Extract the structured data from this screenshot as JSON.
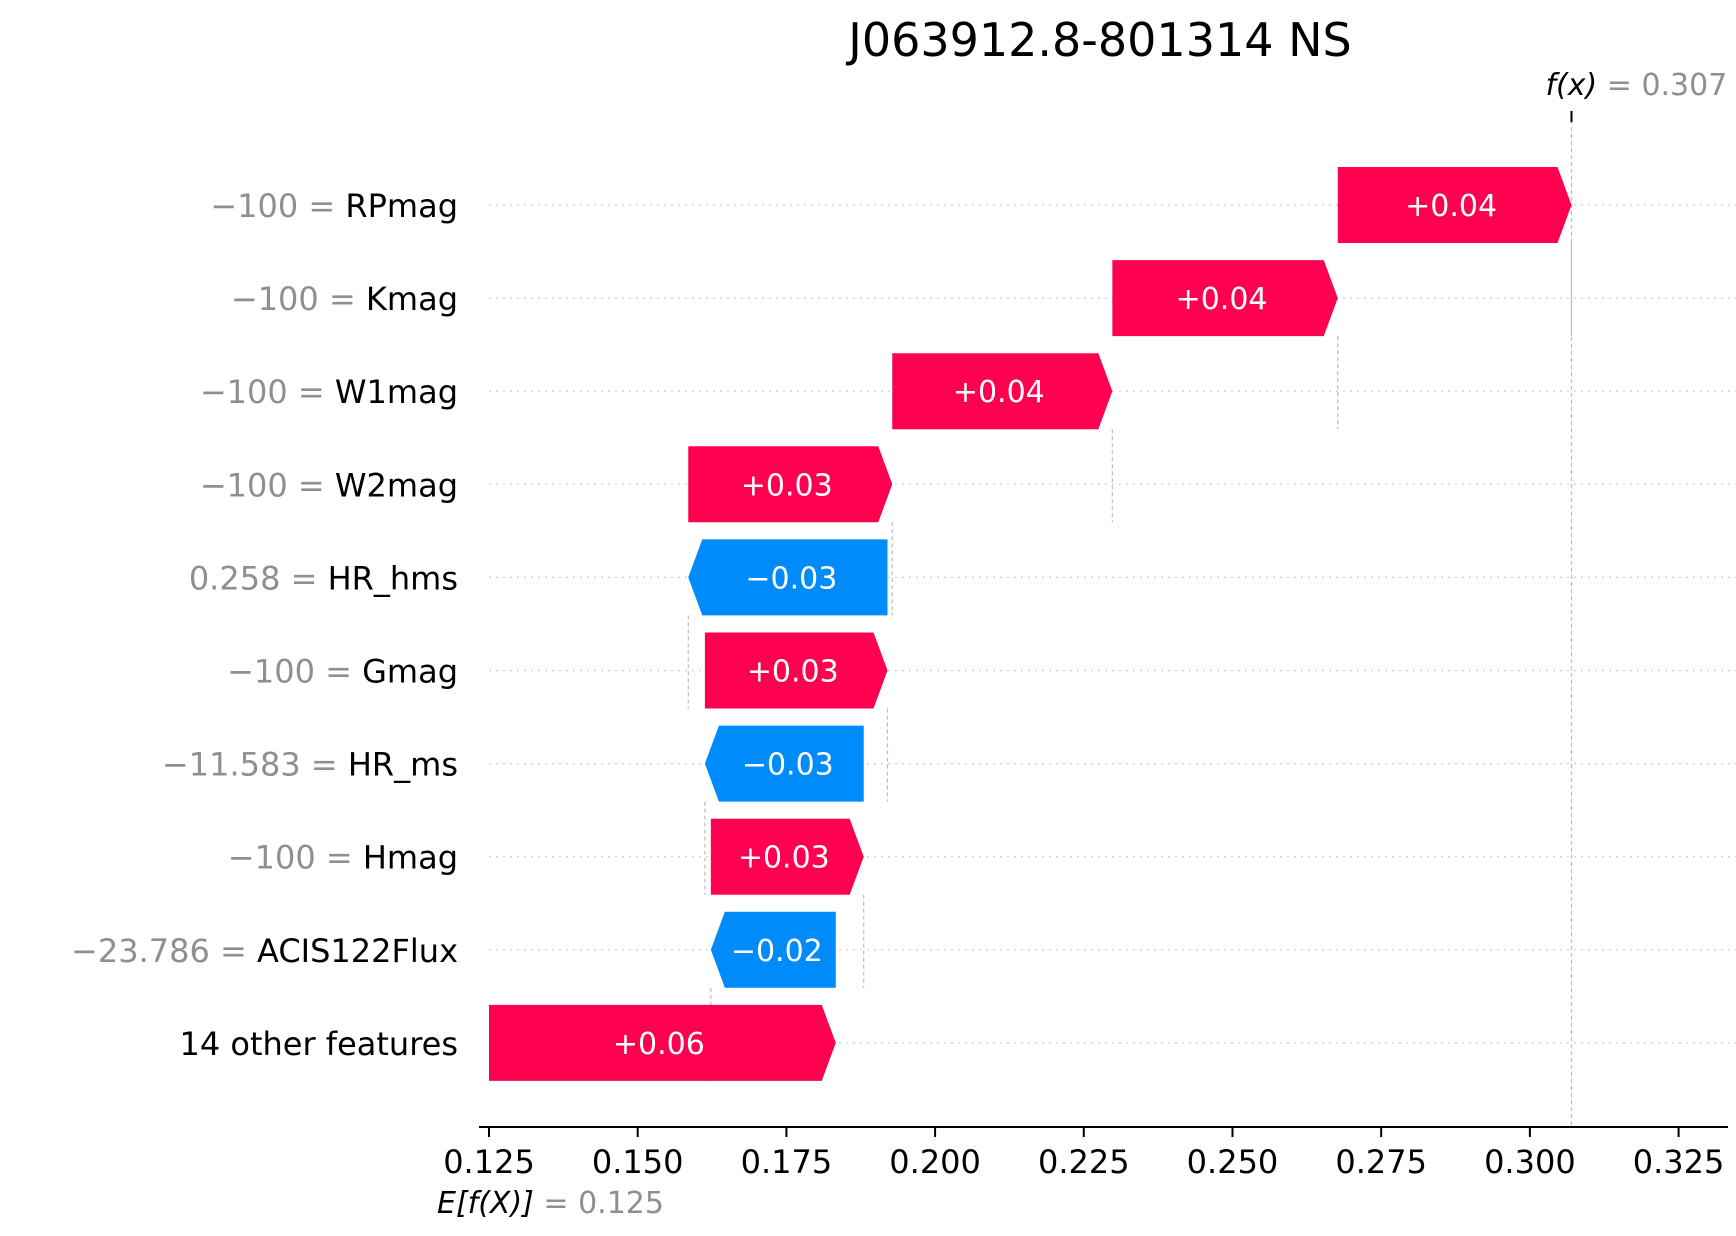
{
  "chart_data": {
    "type": "waterfall",
    "title": "J063912.8-801314 NS",
    "base_value": 0.125,
    "final_value": 0.307,
    "base_label": {
      "expr": "E[f(X)]",
      "value_text": "= 0.125"
    },
    "final_label": {
      "expr": "f(x)",
      "value_text": "= 0.307"
    },
    "xlim": [
      0.125,
      0.336
    ],
    "x_ticks": [
      0.125,
      0.15,
      0.175,
      0.2,
      0.225,
      0.25,
      0.275,
      0.3,
      0.325
    ],
    "x_tick_labels": [
      "0.125",
      "0.150",
      "0.175",
      "0.200",
      "0.225",
      "0.250",
      "0.275",
      "0.300",
      "0.325"
    ],
    "features": [
      {
        "value": "−100",
        "name": "RPmag",
        "start": 0.2677,
        "end": 0.307,
        "label": "+0.04"
      },
      {
        "value": "−100",
        "name": "Kmag",
        "start": 0.2298,
        "end": 0.2677,
        "label": "+0.04"
      },
      {
        "value": "−100",
        "name": "W1mag",
        "start": 0.1928,
        "end": 0.2298,
        "label": "+0.04"
      },
      {
        "value": "−100",
        "name": "W2mag",
        "start": 0.1585,
        "end": 0.1928,
        "label": "+0.03"
      },
      {
        "value": "0.258",
        "name": "HR_hms",
        "start": 0.192,
        "end": 0.1585,
        "label": "−0.03"
      },
      {
        "value": "−100",
        "name": "Gmag",
        "start": 0.1613,
        "end": 0.192,
        "label": "+0.03"
      },
      {
        "value": "−11.583",
        "name": "HR_ms",
        "start": 0.188,
        "end": 0.1613,
        "label": "−0.03"
      },
      {
        "value": "−100",
        "name": "Hmag",
        "start": 0.1623,
        "end": 0.188,
        "label": "+0.03"
      },
      {
        "value": "−23.786",
        "name": "ACIS122Flux",
        "start": 0.1833,
        "end": 0.1623,
        "label": "−0.02"
      },
      {
        "value": "",
        "name": "14 other features",
        "start": 0.125,
        "end": 0.1833,
        "label": "+0.06"
      }
    ],
    "colors": {
      "positive": "#ff0051",
      "negative": "#008bfb",
      "guide": "#bbbbbb"
    }
  }
}
